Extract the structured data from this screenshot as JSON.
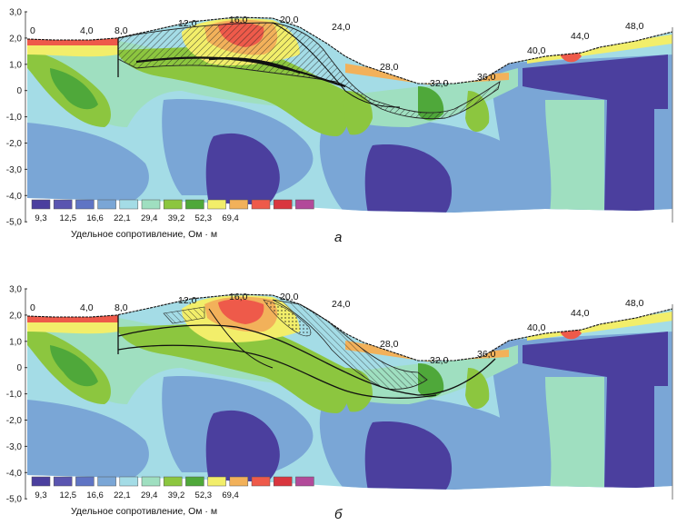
{
  "panels": [
    {
      "id": "a",
      "label": "а",
      "y_ticks": [
        "3,0",
        "2,0",
        "1,0",
        "0",
        "-1,0",
        "-2,0",
        "-3,0",
        "-4,0",
        "-5,0"
      ],
      "x_ticks": [
        "0",
        "4,0",
        "8,0",
        "12,0",
        "16,0",
        "20,0",
        "24,0",
        "28,0",
        "32,0",
        "36,0",
        "40,0",
        "44,0",
        "48,0"
      ],
      "legend_title": "Удельное сопротивление, Ом · м",
      "legend_values": [
        "9,3",
        "12,5",
        "16,6",
        "22,1",
        "29,4",
        "39,2",
        "52,3",
        "69,4"
      ]
    },
    {
      "id": "b",
      "label": "б",
      "y_ticks": [
        "3,0",
        "2,0",
        "1,0",
        "0",
        "-1,0",
        "-2,0",
        "-3,0",
        "-4,0",
        "-5,0"
      ],
      "x_ticks": [
        "0",
        "4,0",
        "8,0",
        "12,0",
        "16,0",
        "20,0",
        "24,0",
        "28,0",
        "32,0",
        "36,0",
        "40,0",
        "44,0",
        "48,0"
      ],
      "legend_title": "Удельное сопротивление, Ом · м",
      "legend_values": [
        "9,3",
        "12,5",
        "16,6",
        "22,1",
        "29,4",
        "39,2",
        "52,3",
        "69,4"
      ]
    }
  ],
  "colors": {
    "scale": [
      "#4b3f9e",
      "#5a55b0",
      "#5f74c4",
      "#7aa6d6",
      "#a4dce6",
      "#9fdfc0",
      "#8cc63f",
      "#4fa83a",
      "#f2ee6a",
      "#f2b15a",
      "#ee5a4a",
      "#d9363f",
      "#b24a9a"
    ]
  }
}
